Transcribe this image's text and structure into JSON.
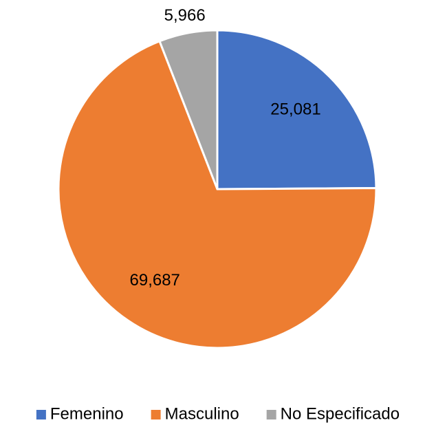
{
  "chart_data": {
    "type": "pie",
    "categories": [
      "Femenino",
      "Masculino",
      "No Especificado"
    ],
    "values": [
      25081,
      69687,
      5966
    ],
    "value_labels": [
      "25,081",
      "69,687",
      "5,966"
    ],
    "colors": [
      "#4472c4",
      "#ed7d31",
      "#a5a5a5"
    ],
    "legend": "bottom"
  }
}
